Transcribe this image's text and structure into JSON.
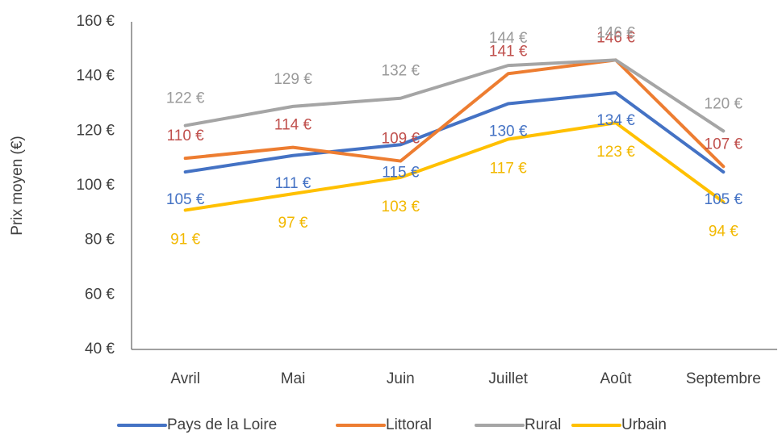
{
  "chart_data": {
    "type": "line",
    "y_label": "Prix moyen (€)",
    "categories": [
      "Avril",
      "Mai",
      "Juin",
      "Juillet",
      "Août",
      "Septembre"
    ],
    "series": [
      {
        "name": "Pays de la Loire",
        "color": "#4472c4",
        "label_color": "#4472c4",
        "values": [
          105,
          111,
          115,
          130,
          134,
          105
        ],
        "value_labels": [
          "105 €",
          "111 €",
          "115 €",
          "130 €",
          "134 €",
          "105 €"
        ]
      },
      {
        "name": "Littoral",
        "color": "#ed7d31",
        "label_color": "#c0504d",
        "values": [
          110,
          114,
          109,
          141,
          146,
          107
        ],
        "value_labels": [
          "110 €",
          "114 €",
          "109 €",
          "141 €",
          "146 €",
          "107 €"
        ]
      },
      {
        "name": "Rural",
        "color": "#a5a5a5",
        "label_color": "#9a9a9a",
        "values": [
          122,
          129,
          132,
          144,
          146,
          120
        ],
        "value_labels": [
          "122 €",
          "129 €",
          "132 €",
          "144 €",
          "146 €",
          "120 €"
        ]
      },
      {
        "name": "Urbain",
        "color": "#ffc000",
        "label_color": "#f2b800",
        "values": [
          91,
          97,
          103,
          117,
          123,
          94
        ],
        "value_labels": [
          "91 €",
          "97 €",
          "103 €",
          "117 €",
          "123 €",
          "94 €"
        ]
      }
    ],
    "ylim": [
      40,
      160
    ],
    "yticks": [
      {
        "value": 40,
        "label": "40 €"
      },
      {
        "value": 60,
        "label": "60 €"
      },
      {
        "value": 80,
        "label": "80 €"
      },
      {
        "value": 100,
        "label": "100 €"
      },
      {
        "value": 120,
        "label": "120 €"
      },
      {
        "value": 140,
        "label": "140 €"
      },
      {
        "value": 160,
        "label": "160 €"
      }
    ],
    "grid": false,
    "legend": "bottom"
  }
}
